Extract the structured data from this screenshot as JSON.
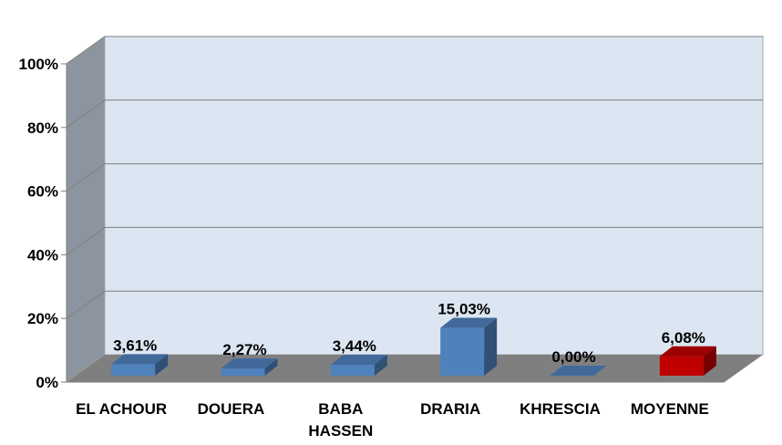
{
  "chart_data": {
    "type": "bar",
    "style": "3d",
    "categories": [
      "EL ACHOUR",
      "DOUERA",
      "BABA\nHASSEN",
      "DRARIA",
      "KHRESCIA",
      "MOYENNE"
    ],
    "values": [
      3.61,
      2.27,
      3.44,
      15.03,
      0.0,
      6.08
    ],
    "data_labels": [
      "3,61%",
      "2,27%",
      "3,44%",
      "15,03%",
      "0,00%",
      "6,08%"
    ],
    "bar_colors": [
      "#4F81BD",
      "#4F81BD",
      "#4F81BD",
      "#4F81BD",
      "#4F81BD",
      "#C00000"
    ],
    "y_ticks": [
      "0%",
      "20%",
      "40%",
      "60%",
      "80%",
      "100%"
    ],
    "ylim": [
      0,
      100
    ],
    "grid": true,
    "title": "",
    "xlabel": "",
    "ylabel": "",
    "colors": {
      "back_wall": "#DCE6F2",
      "side_wall": "#8C959F",
      "floor": "#7F7F7F",
      "gridline": "#7F7F7F"
    }
  }
}
